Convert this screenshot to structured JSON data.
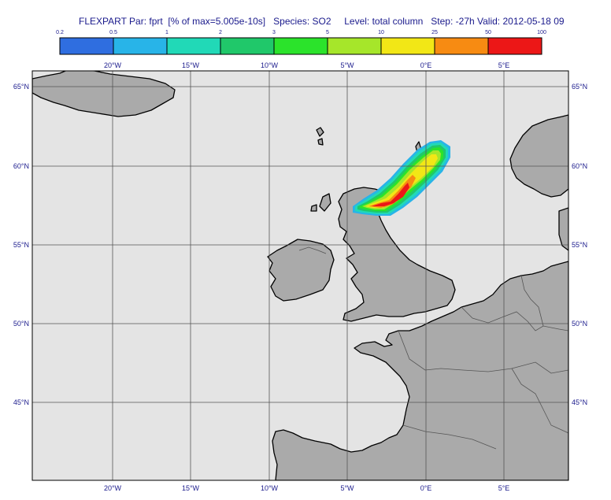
{
  "title": {
    "model": "FLEXPART",
    "parameter": "Par: fprt",
    "units": "[% of max=5.005e-10s]",
    "species": "Species: SO2",
    "level": "Level: total column",
    "step": "Step: -27h",
    "valid": "Valid: 2012-05-18 09"
  },
  "colorbar": {
    "levels": [
      "0.2",
      "0.5",
      "1",
      "2",
      "3",
      "5",
      "10",
      "25",
      "50",
      "100"
    ],
    "colors": [
      "#2f6ee0",
      "#28b4e8",
      "#21d9b7",
      "#20c86a",
      "#2be32b",
      "#a6e62a",
      "#f2e716",
      "#f78b12",
      "#ec1717"
    ]
  },
  "map": {
    "lon_labels": [
      "20°W",
      "15°W",
      "10°W",
      "5°W",
      "0°E",
      "5°E"
    ],
    "lat_labels": [
      "65°N",
      "60°N",
      "55°N",
      "50°N",
      "45°N"
    ],
    "colors": {
      "ocean": "#e4e4e4",
      "land": "#aaaaaa",
      "grid": "#555555",
      "coast": "#000000"
    }
  }
}
